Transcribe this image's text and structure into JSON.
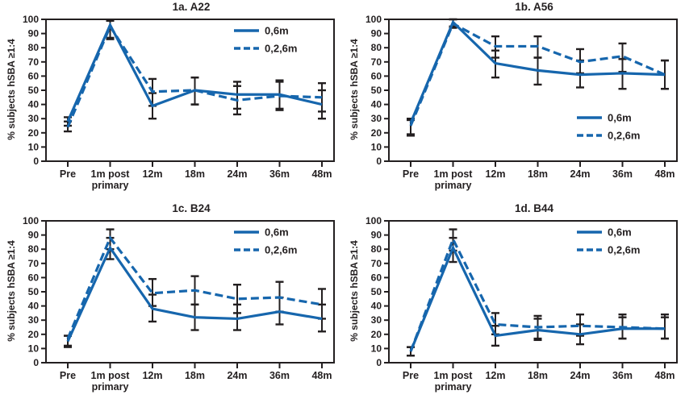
{
  "style": {
    "line_color": "#1666ad",
    "errbar_color": "#231f20",
    "axis_color": "#231f20",
    "text_color": "#231f20",
    "background": "#ffffff"
  },
  "chart_data": [
    {
      "type": "line",
      "title": "1a. A22",
      "ylabel": "% subjects hSBA ≥1:4",
      "xlabel": "",
      "categories": [
        "Pre",
        "1m post\nprimary",
        "12m",
        "18m",
        "24m",
        "36m",
        "48m"
      ],
      "ylim": [
        0,
        100
      ],
      "ytick_step": 10,
      "grid": false,
      "legend_position": "top-right",
      "series": [
        {
          "name": "0,6m",
          "style": "solid",
          "values": [
            28,
            96,
            39,
            50,
            47,
            47,
            40
          ],
          "err_low": [
            25,
            87,
            30,
            40,
            37,
            37,
            30
          ],
          "err_high": [
            31,
            99,
            48,
            59,
            56,
            57,
            50
          ]
        },
        {
          "name": "0,2,6m",
          "style": "dashed",
          "values": [
            24,
            95,
            49,
            50,
            43,
            46,
            45
          ],
          "err_low": [
            21,
            86,
            39,
            40,
            33,
            36,
            35
          ],
          "err_high": [
            28,
            99,
            58,
            59,
            53,
            56,
            55
          ]
        }
      ]
    },
    {
      "type": "line",
      "title": "1b. A56",
      "ylabel": "% subjects hSBA ≥1:4",
      "xlabel": "",
      "categories": [
        "Pre",
        "1m post\nprimary",
        "12m",
        "18m",
        "24m",
        "36m",
        "48m"
      ],
      "ylim": [
        0,
        100
      ],
      "ytick_step": 10,
      "grid": false,
      "legend_position": "bottom-right",
      "series": [
        {
          "name": "0,6m",
          "style": "solid",
          "values": [
            27,
            98,
            69,
            64,
            61,
            62,
            61
          ],
          "err_low": [
            19,
            95,
            59,
            54,
            52,
            51,
            51
          ],
          "err_high": [
            30,
            100,
            78,
            73,
            71,
            72,
            71
          ]
        },
        {
          "name": "0,2,6m",
          "style": "dashed",
          "values": [
            25,
            97,
            81,
            81,
            70,
            74,
            61
          ],
          "err_low": [
            18,
            94,
            73,
            73,
            62,
            63,
            51
          ],
          "err_high": [
            29,
            100,
            88,
            88,
            79,
            83,
            71
          ]
        }
      ]
    },
    {
      "type": "line",
      "title": "1c. B24",
      "ylabel": "% subjects hSBA ≥1:4",
      "xlabel": "",
      "categories": [
        "Pre",
        "1m post\nprimary",
        "12m",
        "18m",
        "24m",
        "36m",
        "48m"
      ],
      "ylim": [
        0,
        100
      ],
      "ytick_step": 10,
      "grid": false,
      "legend_position": "top-right",
      "series": [
        {
          "name": "0,6m",
          "style": "solid",
          "values": [
            15,
            81,
            38,
            32,
            31,
            36,
            31
          ],
          "err_low": [
            11,
            73,
            29,
            23,
            23,
            27,
            22
          ],
          "err_high": [
            19,
            88,
            48,
            41,
            41,
            46,
            41
          ]
        },
        {
          "name": "0,2,6m",
          "style": "dashed",
          "values": [
            17,
            88,
            49,
            51,
            45,
            46,
            41
          ],
          "err_low": [
            12,
            80,
            40,
            41,
            35,
            36,
            31
          ],
          "err_high": [
            19,
            94,
            59,
            61,
            55,
            57,
            52
          ]
        }
      ]
    },
    {
      "type": "line",
      "title": "1d. B44",
      "ylabel": "% subjects hSBA ≥1:4",
      "xlabel": "",
      "categories": [
        "Pre",
        "1m post\nprimary",
        "12m",
        "18m",
        "24m",
        "36m",
        "48m"
      ],
      "ylim": [
        0,
        100
      ],
      "ytick_step": 10,
      "grid": false,
      "legend_position": "top-right",
      "series": [
        {
          "name": "0,6m",
          "style": "solid",
          "values": [
            8,
            81,
            19,
            23,
            20,
            24,
            24
          ],
          "err_low": [
            5,
            71,
            12,
            16,
            13,
            17,
            17
          ],
          "err_high": [
            11,
            88,
            26,
            31,
            27,
            32,
            32
          ]
        },
        {
          "name": "0,2,6m",
          "style": "dashed",
          "values": [
            8,
            87,
            27,
            25,
            26,
            25,
            24
          ],
          "err_low": [
            5,
            79,
            20,
            17,
            19,
            17,
            17
          ],
          "err_high": [
            11,
            94,
            35,
            33,
            34,
            34,
            34
          ]
        }
      ]
    }
  ]
}
